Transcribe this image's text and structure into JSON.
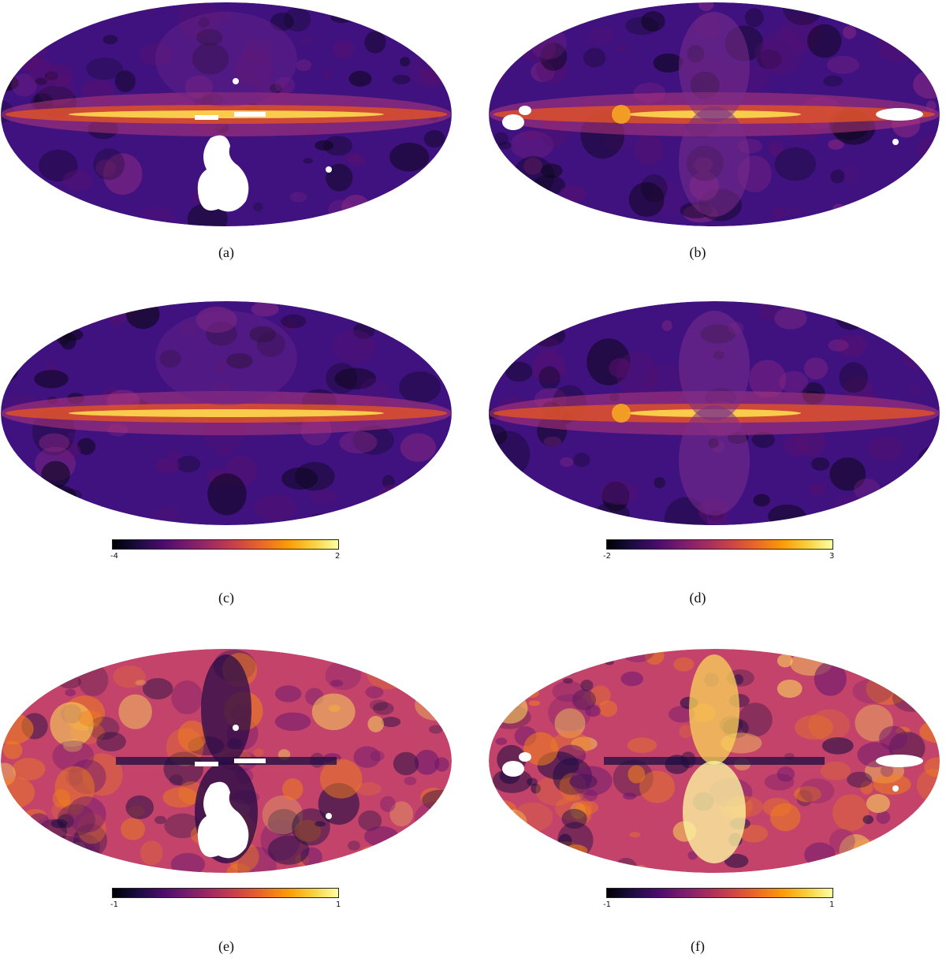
{
  "panels": [
    {
      "caption": "(a)",
      "variant": "a"
    },
    {
      "caption": "(b)",
      "variant": "b"
    },
    {
      "caption": "(c)",
      "variant": "c",
      "colorbar": {
        "min": "-4",
        "max": "2"
      }
    },
    {
      "caption": "(d)",
      "variant": "d",
      "colorbar": {
        "min": "-2",
        "max": "3"
      }
    },
    {
      "caption": "(e)",
      "variant": "e",
      "colorbar": {
        "min": "-1",
        "max": "1"
      }
    },
    {
      "caption": "(f)",
      "variant": "f",
      "colorbar": {
        "min": "-1",
        "max": "1"
      }
    }
  ],
  "colormap": "inferno",
  "colors": {
    "dark": "#0b0618",
    "purple": "#3b0f6f",
    "magenta": "#8c2981",
    "orange": "#f37819",
    "yellow": "#fcfdbf",
    "mask": "#ffffff"
  }
}
